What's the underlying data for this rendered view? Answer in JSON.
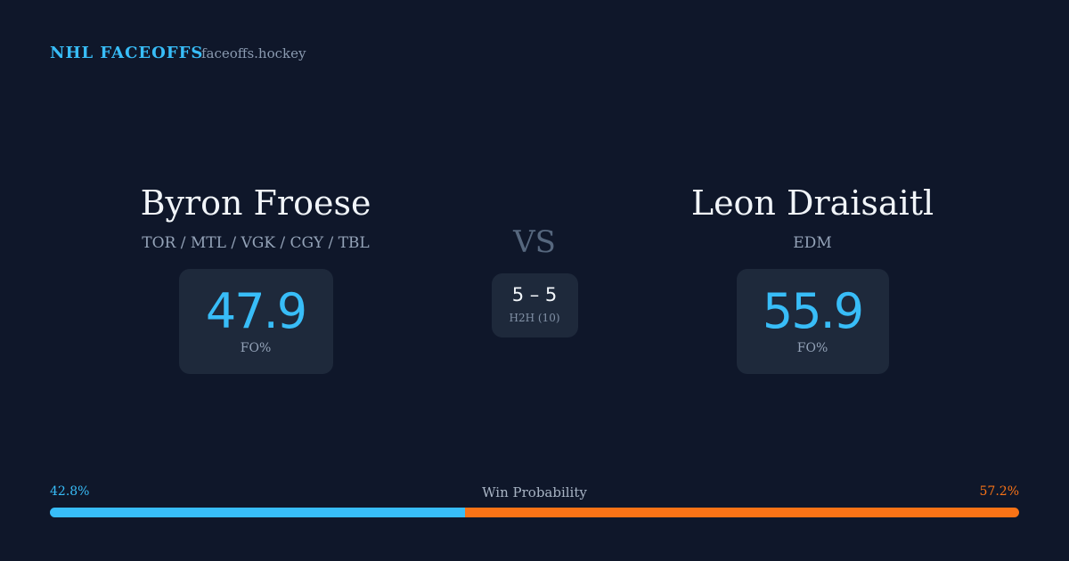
{
  "header": {
    "brand": "NHL FACEOFFS",
    "domain": "faceoffs.hockey"
  },
  "players": [
    {
      "name": "Byron Froese",
      "teams": "TOR / MTL / VGK / CGY / TBL",
      "fo_pct": "47.9",
      "fo_label": "FO%"
    },
    {
      "name": "Leon Draisaitl",
      "teams": "EDM",
      "fo_pct": "55.9",
      "fo_label": "FO%"
    }
  ],
  "vs": "VS",
  "h2h": {
    "score": "5 – 5",
    "label": "H2H (10)"
  },
  "win_probability": {
    "title": "Win Probability",
    "left": {
      "value": 42.8,
      "label": "42.8%",
      "color": "#38bdf8"
    },
    "right": {
      "value": 57.2,
      "label": "57.2%",
      "color": "#f97316"
    }
  }
}
